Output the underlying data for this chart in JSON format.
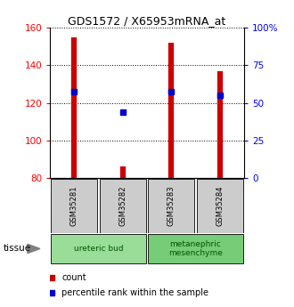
{
  "title": "GDS1572 / X65953mRNA_at",
  "samples": [
    "GSM35281",
    "GSM35282",
    "GSM35283",
    "GSM35284"
  ],
  "count_values": [
    155,
    86,
    152,
    137
  ],
  "percentile_values": [
    126,
    115,
    126,
    124
  ],
  "ylim_left": [
    80,
    160
  ],
  "ylim_right": [
    0,
    100
  ],
  "yticks_left": [
    80,
    100,
    120,
    140,
    160
  ],
  "yticks_right": [
    0,
    25,
    50,
    75,
    100
  ],
  "ytick_labels_right": [
    "0",
    "25",
    "50",
    "75",
    "100%"
  ],
  "bar_color": "#cc0000",
  "point_color": "#0000cc",
  "tissue_groups": [
    {
      "label": "ureteric bud",
      "samples": [
        0,
        1
      ],
      "color": "#99dd99"
    },
    {
      "label": "metanephric\nmesenchyme",
      "samples": [
        2,
        3
      ],
      "color": "#77cc77"
    }
  ],
  "legend_items": [
    {
      "color": "#cc0000",
      "label": "count"
    },
    {
      "color": "#0000cc",
      "label": "percentile rank within the sample"
    }
  ],
  "tissue_label": "tissue",
  "sample_box_color": "#cccccc",
  "bg_color": "#ffffff"
}
